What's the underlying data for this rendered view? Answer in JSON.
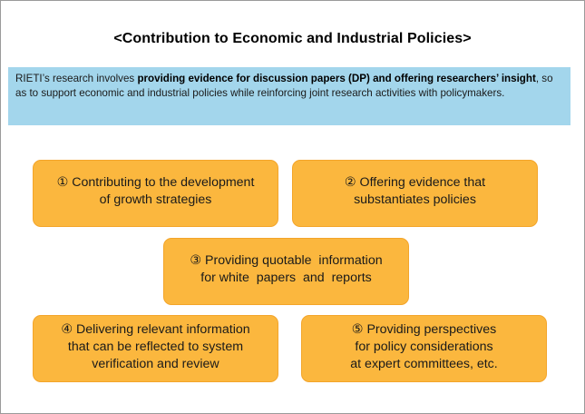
{
  "title": "<Contribution to Economic and Industrial Policies>",
  "intro": {
    "text_before": "RIETI’s research involves ",
    "emphasis": "providing evidence for discussion papers (DP) and offering researchers’ insight",
    "text_after": ", so as to support economic and industrial policies while reinforcing joint research activities with policymakers."
  },
  "boxes": [
    {
      "lines": [
        "① Contributing to the development",
        "of growth strategies"
      ]
    },
    {
      "lines": [
        "② Offering evidence that",
        "substantiates policies"
      ]
    },
    {
      "lines": [
        "③ Providing quotable  information",
        "for white  papers  and  reports"
      ]
    },
    {
      "lines": [
        "④ Delivering relevant information",
        "that can be reflected to system",
        "verification and review"
      ]
    },
    {
      "lines": [
        "⑤ Providing perspectives",
        "for policy considerations",
        "at expert committees, etc."
      ]
    }
  ],
  "colors": {
    "intro_background": "#a3d6ec",
    "box_fill": "#fbb73e",
    "frame_border": "#9a9a9a"
  }
}
